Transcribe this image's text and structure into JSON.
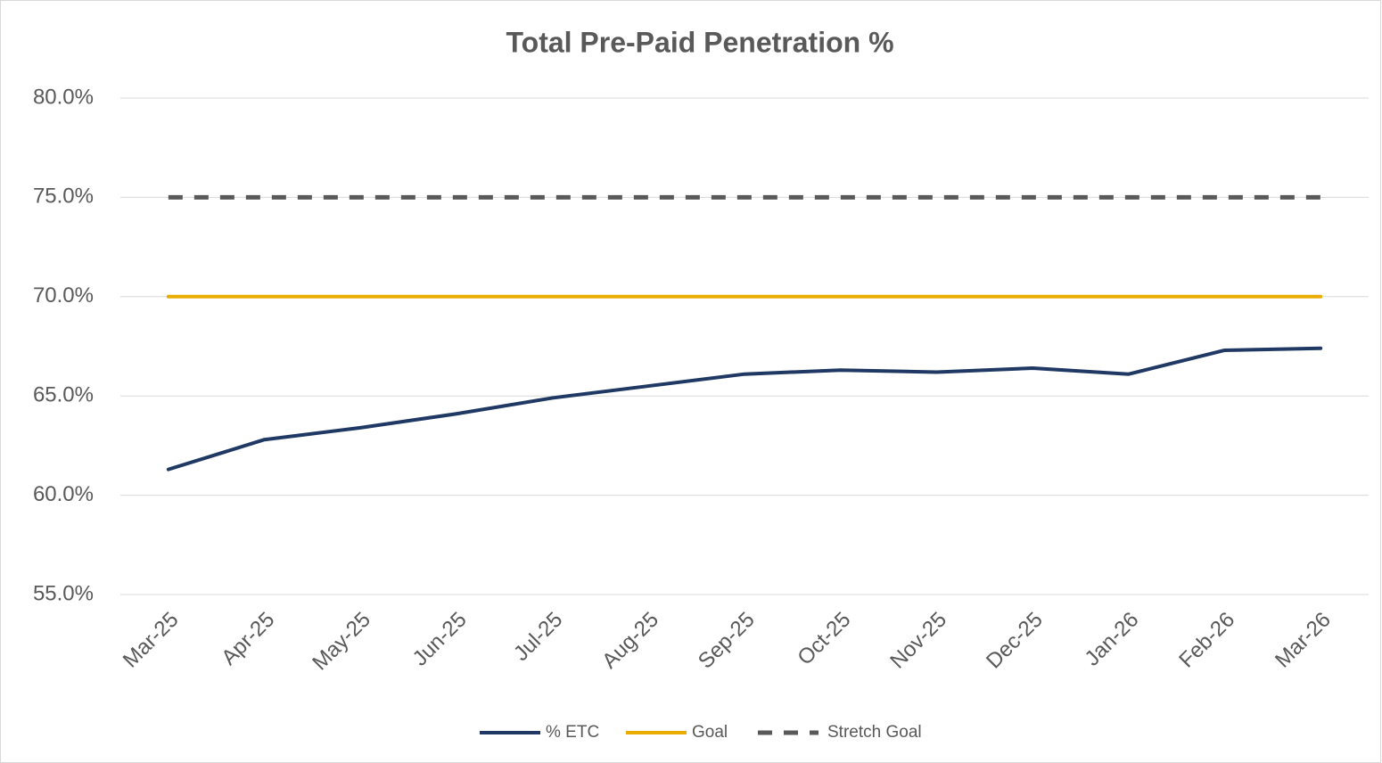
{
  "chart_data": {
    "type": "line",
    "title": "Total Pre-Paid Penetration %",
    "categories": [
      "Mar-25",
      "Apr-25",
      "May-25",
      "Jun-25",
      "Jul-25",
      "Aug-25",
      "Sep-25",
      "Oct-25",
      "Nov-25",
      "Dec-25",
      "Jan-26",
      "Feb-26",
      "Mar-26"
    ],
    "series": [
      {
        "name": "% ETC",
        "color": "#203864",
        "values": [
          61.3,
          62.8,
          63.4,
          64.1,
          64.9,
          65.5,
          66.1,
          66.3,
          66.2,
          66.4,
          66.1,
          67.3,
          67.4
        ]
      },
      {
        "name": "Goal",
        "color": "#e8ad00",
        "values": [
          70,
          70,
          70,
          70,
          70,
          70,
          70,
          70,
          70,
          70,
          70,
          70,
          70
        ]
      },
      {
        "name": "Stretch Goal",
        "color": "#595959",
        "dashed": true,
        "values": [
          75,
          75,
          75,
          75,
          75,
          75,
          75,
          75,
          75,
          75,
          75,
          75,
          75
        ]
      }
    ],
    "ylim": [
      55,
      80
    ],
    "yticks": [
      {
        "value": 55,
        "label": "55.0%"
      },
      {
        "value": 60,
        "label": "60.0%"
      },
      {
        "value": 65,
        "label": "65.0%"
      },
      {
        "value": 70,
        "label": "70.0%"
      },
      {
        "value": 75,
        "label": "75.0%"
      },
      {
        "value": 80,
        "label": "80.0%"
      }
    ],
    "grid": true,
    "legend": "bottom"
  }
}
